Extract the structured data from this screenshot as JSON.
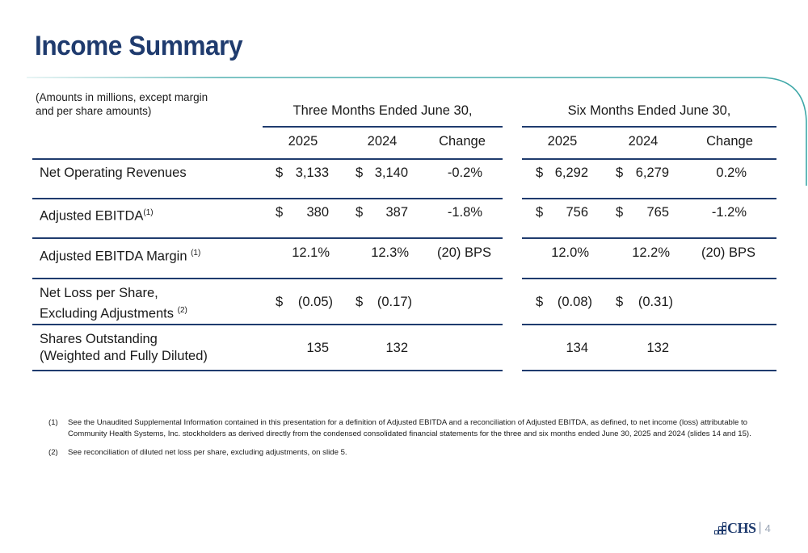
{
  "slide": {
    "title": "Income Summary",
    "note_line1": "(Amounts in millions, except margin",
    "note_line2": "and per share amounts)",
    "page_number": "4",
    "logo_text": "CHS",
    "logo_separator": "|"
  },
  "table": {
    "group_headers": [
      "Three Months Ended June 30,",
      "Six Months Ended June 30,"
    ],
    "column_headers": [
      "2025",
      "2024",
      "Change",
      "2025",
      "2024",
      "Change"
    ],
    "rows": [
      {
        "label_line1": "Net Operating Revenues",
        "label_line2": "",
        "footnote": "",
        "cells": [
          {
            "sign": "$",
            "value": "3,133"
          },
          {
            "sign": "$",
            "value": "3,140"
          },
          {
            "sign": "",
            "value": "-0.2%"
          },
          {
            "sign": "$",
            "value": "6,292"
          },
          {
            "sign": "$",
            "value": "6,279"
          },
          {
            "sign": "",
            "value": "0.2%"
          }
        ]
      },
      {
        "label_line1": "Adjusted EBITDA",
        "label_line2": "",
        "footnote": "(1)",
        "cells": [
          {
            "sign": "$",
            "value": "380"
          },
          {
            "sign": "$",
            "value": "387"
          },
          {
            "sign": "",
            "value": "-1.8%"
          },
          {
            "sign": "$",
            "value": "756"
          },
          {
            "sign": "$",
            "value": "765"
          },
          {
            "sign": "",
            "value": "-1.2%"
          }
        ]
      },
      {
        "label_line1": "Adjusted EBITDA Margin",
        "label_line2": "",
        "footnote": "(1)",
        "cells": [
          {
            "sign": "",
            "value": "12.1%"
          },
          {
            "sign": "",
            "value": "12.3%"
          },
          {
            "sign": "",
            "value": "(20) BPS"
          },
          {
            "sign": "",
            "value": "12.0%"
          },
          {
            "sign": "",
            "value": "12.2%"
          },
          {
            "sign": "",
            "value": "(20) BPS"
          }
        ]
      },
      {
        "label_line1": "Net Loss per Share,",
        "label_line2": "Excluding Adjustments",
        "footnote": "(2)",
        "cells": [
          {
            "sign": "$",
            "value": "(0.05)"
          },
          {
            "sign": "$",
            "value": "(0.17)"
          },
          {
            "sign": "",
            "value": ""
          },
          {
            "sign": "$",
            "value": "(0.08)"
          },
          {
            "sign": "$",
            "value": "(0.31)"
          },
          {
            "sign": "",
            "value": ""
          }
        ]
      },
      {
        "label_line1": "Shares Outstanding",
        "label_line2": "(Weighted and Fully Diluted)",
        "footnote": "",
        "cells": [
          {
            "sign": "",
            "value": "135"
          },
          {
            "sign": "",
            "value": "132"
          },
          {
            "sign": "",
            "value": ""
          },
          {
            "sign": "",
            "value": "134"
          },
          {
            "sign": "",
            "value": "132"
          },
          {
            "sign": "",
            "value": ""
          }
        ]
      }
    ]
  },
  "footnotes": [
    {
      "number": "(1)",
      "text": "See the Unaudited Supplemental Information contained in this presentation for a definition of Adjusted EBITDA and a reconciliation of Adjusted EBITDA, as defined, to net income (loss) attributable to Community Health Systems, Inc. stockholders as derived directly from the condensed consolidated financial statements for the three and six months ended June 30, 2025 and 2024 (slides 14 and 15)."
    },
    {
      "number": "(2)",
      "text": "See reconciliation of diluted net loss per share, excluding adjustments, on slide 5."
    }
  ],
  "colors": {
    "brand_navy": "#1f3b6e",
    "accent_teal": "#3fa8a8"
  }
}
